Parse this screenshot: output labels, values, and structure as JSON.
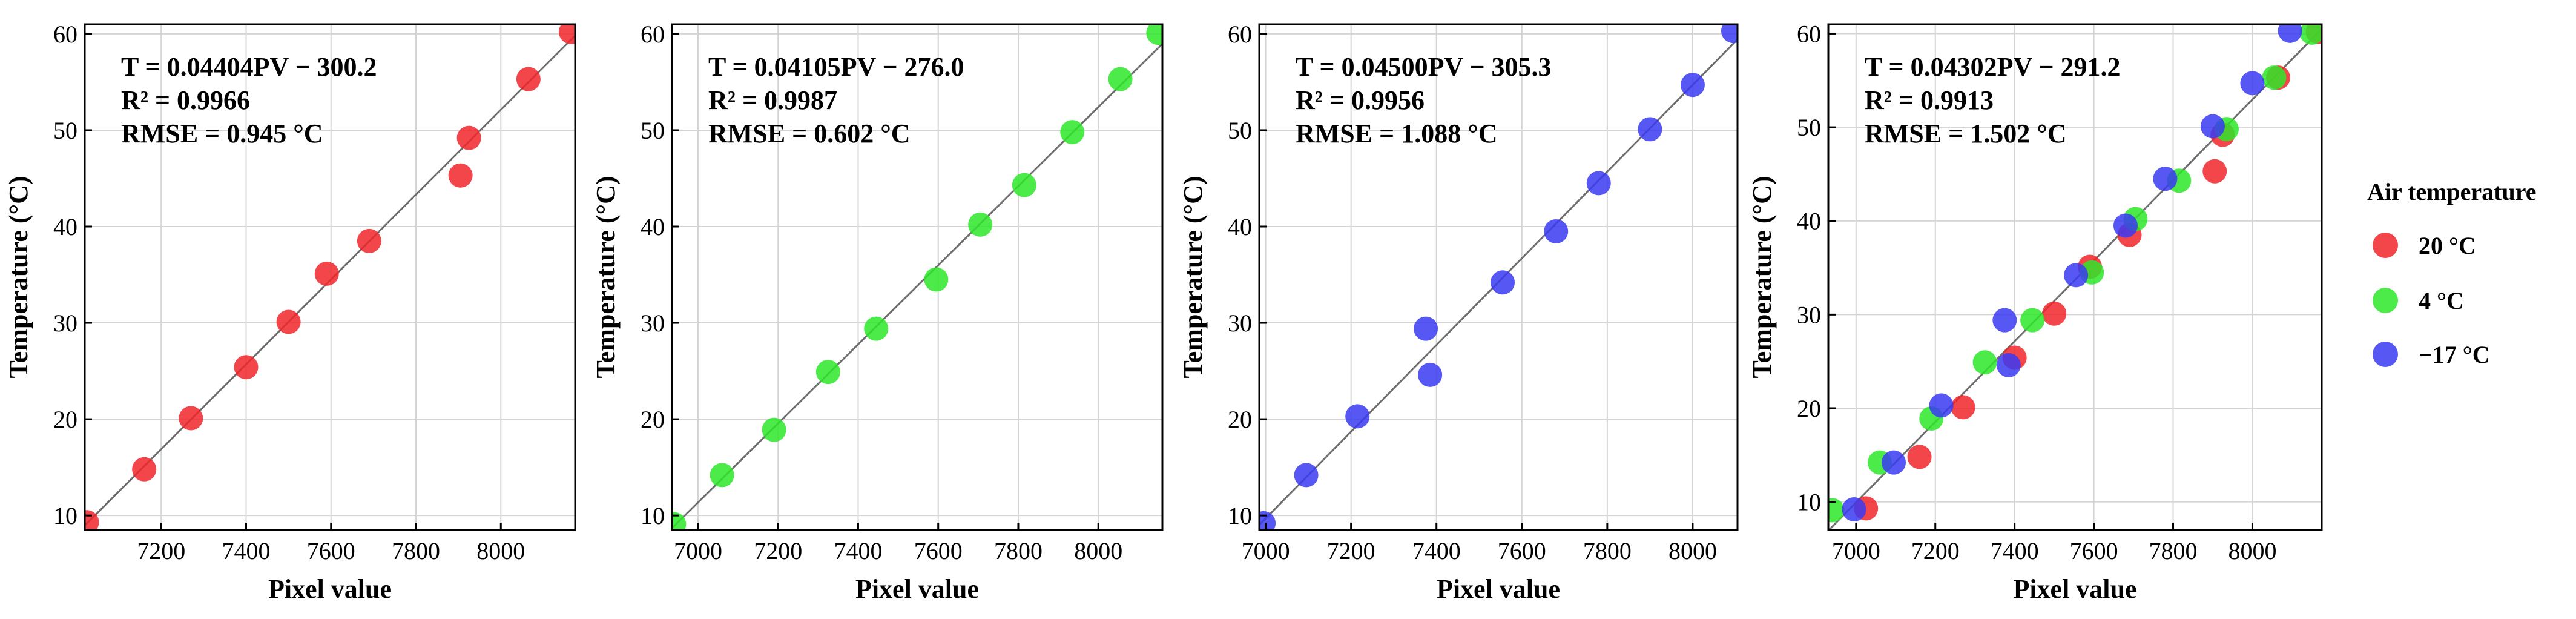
{
  "chart_data": [
    {
      "type": "scatter",
      "xlabel": "Pixel value",
      "ylabel": "Temperature (°C)",
      "xlim": [
        7020,
        8175
      ],
      "ylim": [
        8.5,
        61
      ],
      "xticks": [
        7200,
        7400,
        7600,
        7800,
        8000
      ],
      "yticks": [
        10,
        20,
        30,
        40,
        50,
        60
      ],
      "fit": {
        "slope": 0.04404,
        "intercept": -300.2
      },
      "annotation": [
        "T = 0.04404PV − 300.2",
        "R² = 0.9966",
        "RMSE = 0.945 °C"
      ],
      "series": [
        {
          "name": "20 °C",
          "color": "#f0262a",
          "points": [
            [
              7025,
              9.3
            ],
            [
              7160,
              14.8
            ],
            [
              7270,
              20.1
            ],
            [
              7400,
              25.4
            ],
            [
              7500,
              30.1
            ],
            [
              7590,
              35.1
            ],
            [
              7690,
              38.5
            ],
            [
              7905,
              45.3
            ],
            [
              7925,
              49.2
            ],
            [
              8065,
              55.3
            ],
            [
              8165,
              60.2
            ]
          ]
        }
      ]
    },
    {
      "type": "scatter",
      "xlabel": "Pixel value",
      "ylabel": "Temperature (°C)",
      "xlim": [
        6935,
        8160
      ],
      "ylim": [
        8.5,
        61
      ],
      "xticks": [
        7000,
        7200,
        7400,
        7600,
        7800,
        8000
      ],
      "yticks": [
        10,
        20,
        30,
        40,
        50,
        60
      ],
      "fit": {
        "slope": 0.04105,
        "intercept": -276.0
      },
      "annotation": [
        "T = 0.04105PV − 276.0",
        "R² = 0.9987",
        "RMSE = 0.602 °C"
      ],
      "series": [
        {
          "name": "4 °C",
          "color": "#2ee82a",
          "points": [
            [
              6940,
              9.1
            ],
            [
              7060,
              14.2
            ],
            [
              7190,
              18.9
            ],
            [
              7325,
              24.9
            ],
            [
              7445,
              29.4
            ],
            [
              7595,
              34.5
            ],
            [
              7705,
              40.2
            ],
            [
              7815,
              44.3
            ],
            [
              7935,
              49.8
            ],
            [
              8055,
              55.3
            ],
            [
              8150,
              60.1
            ]
          ]
        }
      ]
    },
    {
      "type": "scatter",
      "xlabel": "Pixel value",
      "ylabel": "Temperature (°C)",
      "xlim": [
        6985,
        8105
      ],
      "ylim": [
        8.5,
        61
      ],
      "xticks": [
        7000,
        7200,
        7400,
        7600,
        7800,
        8000
      ],
      "yticks": [
        10,
        20,
        30,
        40,
        50,
        60
      ],
      "fit": {
        "slope": 0.045,
        "intercept": -305.3
      },
      "annotation": [
        "T = 0.04500PV − 305.3",
        "R² = 0.9956",
        "RMSE = 1.088 °C"
      ],
      "series": [
        {
          "name": "−17 °C",
          "color": "#3a3af2",
          "points": [
            [
              6995,
              9.2
            ],
            [
              7095,
              14.2
            ],
            [
              7215,
              20.3
            ],
            [
              7375,
              29.4
            ],
            [
              7385,
              24.6
            ],
            [
              7555,
              34.2
            ],
            [
              7680,
              39.5
            ],
            [
              7780,
              44.5
            ],
            [
              7900,
              50.1
            ],
            [
              8000,
              54.7
            ],
            [
              8095,
              60.3
            ]
          ]
        }
      ]
    },
    {
      "type": "scatter",
      "xlabel": "Pixel value",
      "ylabel": "Temperature (°C)",
      "xlim": [
        6930,
        8175
      ],
      "ylim": [
        7,
        61
      ],
      "xticks": [
        7000,
        7200,
        7400,
        7600,
        7800,
        8000
      ],
      "yticks": [
        10,
        20,
        30,
        40,
        50,
        60
      ],
      "fit": {
        "slope": 0.04302,
        "intercept": -291.2
      },
      "annotation": [
        "T = 0.04302PV − 291.2",
        "R² = 0.9913",
        "RMSE = 1.502 °C"
      ],
      "series": [
        {
          "name": "20 °C",
          "color": "#f0262a",
          "points": [
            [
              7025,
              9.3
            ],
            [
              7160,
              14.8
            ],
            [
              7270,
              20.1
            ],
            [
              7400,
              25.4
            ],
            [
              7500,
              30.1
            ],
            [
              7590,
              35.1
            ],
            [
              7690,
              38.5
            ],
            [
              7905,
              45.3
            ],
            [
              7925,
              49.2
            ],
            [
              8065,
              55.3
            ],
            [
              8165,
              60.2
            ]
          ]
        },
        {
          "name": "4 °C",
          "color": "#2ee82a",
          "points": [
            [
              6940,
              9.1
            ],
            [
              7060,
              14.2
            ],
            [
              7190,
              18.9
            ],
            [
              7325,
              24.9
            ],
            [
              7445,
              29.4
            ],
            [
              7595,
              34.5
            ],
            [
              7705,
              40.2
            ],
            [
              7815,
              44.3
            ],
            [
              7935,
              49.8
            ],
            [
              8055,
              55.3
            ],
            [
              8150,
              60.1
            ]
          ]
        },
        {
          "name": "−17 °C",
          "color": "#3a3af2",
          "points": [
            [
              6995,
              9.2
            ],
            [
              7095,
              14.2
            ],
            [
              7215,
              20.3
            ],
            [
              7375,
              29.4
            ],
            [
              7385,
              24.6
            ],
            [
              7555,
              34.2
            ],
            [
              7680,
              39.5
            ],
            [
              7780,
              44.5
            ],
            [
              7900,
              50.1
            ],
            [
              8000,
              54.7
            ],
            [
              8095,
              60.3
            ]
          ]
        }
      ]
    }
  ],
  "legend": {
    "title": "Air temperature",
    "items": [
      {
        "label": "20 °C",
        "color": "#f0262a"
      },
      {
        "label": "4 °C",
        "color": "#2ee82a"
      },
      {
        "label": "−17 °C",
        "color": "#3a3af2"
      }
    ]
  }
}
